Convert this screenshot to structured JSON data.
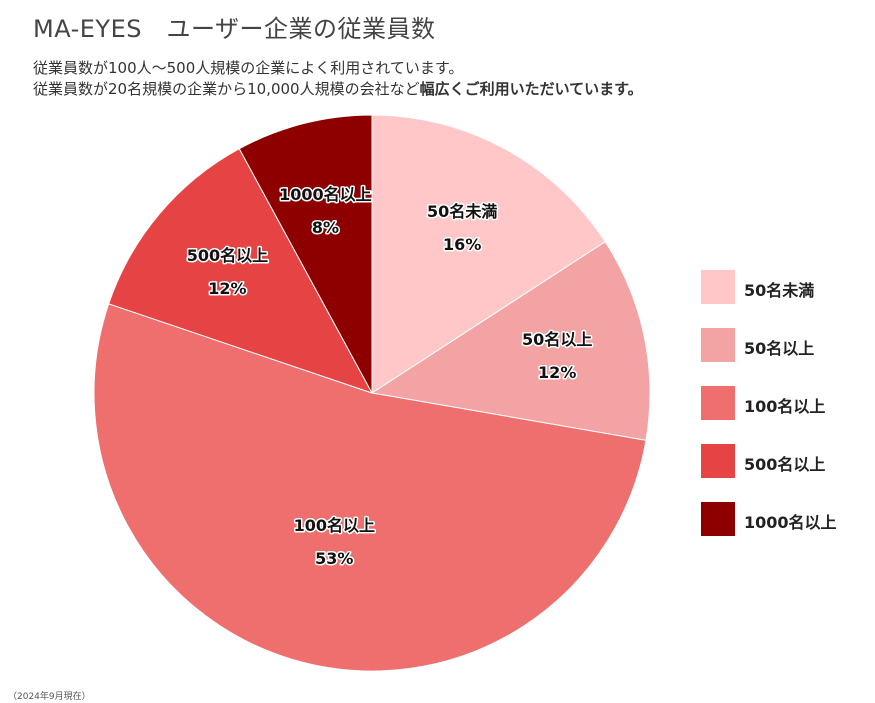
{
  "header": {
    "title": "MA-EYES　ユーザー企業の従業員数",
    "subtitle_line1": "従業員数が100人～500人規模の企業によく利用されています。",
    "subtitle_line2_plain": "従業員数が20名規模の企業から10,000人規模の会社など",
    "subtitle_line2_bold": "幅広くご利用いただいています。"
  },
  "footnote": "（2024年9月現在）",
  "chart_data": {
    "type": "pie",
    "start_angle": "12 o'clock",
    "direction": "clockwise",
    "slices": [
      {
        "label": "50名未満",
        "percent_label": "16%",
        "value": 16,
        "color": "#FFC7C7"
      },
      {
        "label": "50名以上",
        "percent_label": "12%",
        "value": 12,
        "color": "#F3A3A3"
      },
      {
        "label": "100名以上",
        "percent_label": "53%",
        "value": 53,
        "color": "#EF6E6E"
      },
      {
        "label": "500名以上",
        "percent_label": "12%",
        "value": 12,
        "color": "#E64444"
      },
      {
        "label": "1000名以上",
        "percent_label": "8%",
        "value": 8,
        "color": "#8E0000"
      }
    ],
    "legend": {
      "placement": "right"
    }
  }
}
